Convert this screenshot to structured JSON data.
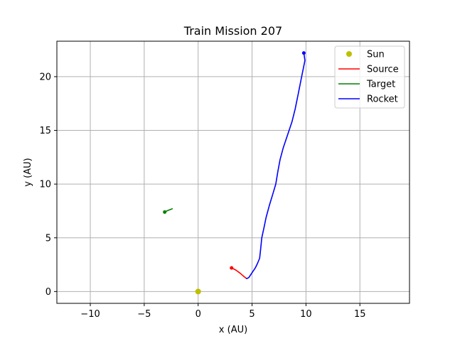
{
  "chart_data": {
    "type": "line",
    "title": "Train Mission 207",
    "xlabel": "x (AU)",
    "ylabel": "y (AU)",
    "xlim": [
      -13.1,
      19.6
    ],
    "ylim": [
      -1.1,
      23.3
    ],
    "xticks": [
      -10,
      -5,
      0,
      5,
      10,
      15
    ],
    "yticks": [
      0,
      5,
      10,
      15,
      20
    ],
    "xtick_labels": [
      "−10",
      "−5",
      "0",
      "5",
      "10",
      "15"
    ],
    "ytick_labels": [
      "0",
      "5",
      "10",
      "15",
      "20"
    ],
    "grid": true,
    "legend_position": "top-right",
    "series": [
      {
        "name": "Sun",
        "kind": "marker",
        "color": "#bfbf00",
        "points": [
          [
            0,
            0
          ]
        ]
      },
      {
        "name": "Source",
        "kind": "line",
        "color": "#ff0000",
        "end_marker": [
          3.1,
          2.2
        ],
        "points": [
          [
            3.1,
            2.2
          ],
          [
            3.5,
            2.0
          ],
          [
            3.9,
            1.7
          ],
          [
            4.3,
            1.35
          ],
          [
            4.5,
            1.2
          ]
        ]
      },
      {
        "name": "Target",
        "kind": "line",
        "color": "#008000",
        "end_marker": [
          -3.1,
          7.4
        ],
        "points": [
          [
            -3.1,
            7.4
          ],
          [
            -2.8,
            7.55
          ],
          [
            -2.4,
            7.7
          ]
        ]
      },
      {
        "name": "Rocket",
        "kind": "line",
        "color": "#0000ff",
        "end_marker": [
          9.8,
          22.2
        ],
        "points": [
          [
            4.5,
            1.2
          ],
          [
            4.7,
            1.3
          ],
          [
            4.9,
            1.6
          ],
          [
            5.1,
            1.9
          ],
          [
            5.3,
            2.2
          ],
          [
            5.5,
            2.6
          ],
          [
            5.7,
            3.1
          ],
          [
            5.8,
            4.0
          ],
          [
            5.9,
            5.0
          ],
          [
            6.1,
            5.9
          ],
          [
            6.3,
            6.9
          ],
          [
            6.6,
            8.0
          ],
          [
            6.9,
            9.0
          ],
          [
            7.2,
            10.0
          ],
          [
            7.4,
            11.2
          ],
          [
            7.6,
            12.3
          ],
          [
            7.9,
            13.4
          ],
          [
            8.3,
            14.6
          ],
          [
            8.7,
            15.8
          ],
          [
            9.0,
            17.0
          ],
          [
            9.3,
            18.5
          ],
          [
            9.6,
            20.0
          ],
          [
            9.9,
            21.5
          ],
          [
            9.8,
            22.2
          ]
        ]
      }
    ]
  }
}
